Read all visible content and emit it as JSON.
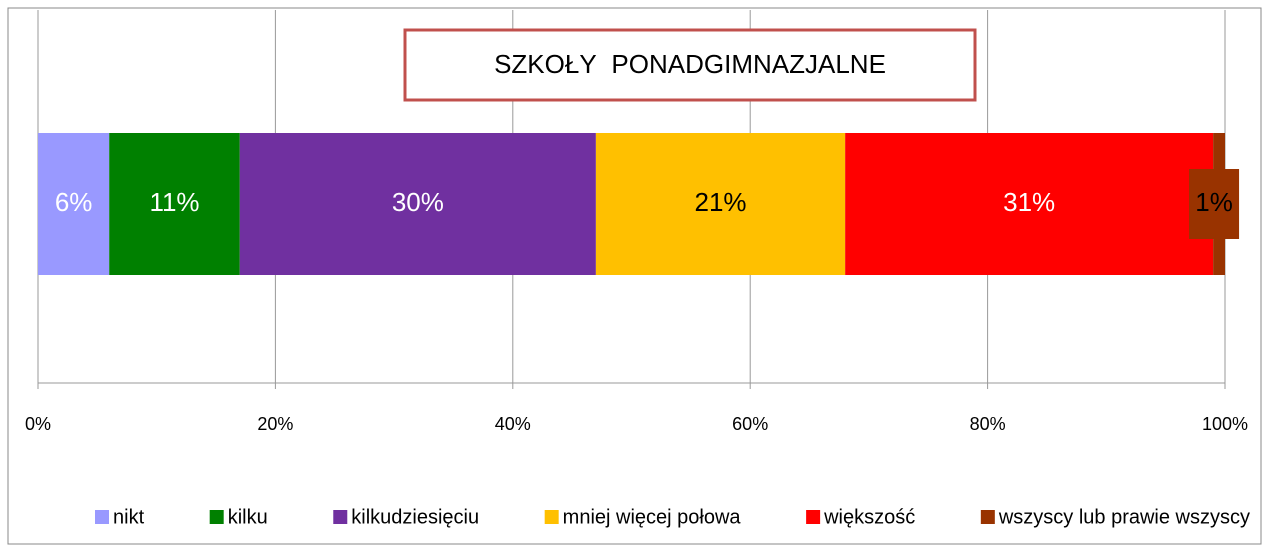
{
  "chart_data": {
    "type": "stacked_barh",
    "title": "SZKOŁY PONADGIMNAZJALNE",
    "categories": [
      null
    ],
    "series": [
      {
        "name": "nikt",
        "color": "#9999ff",
        "label_color": "#ffffff",
        "values": [
          6
        ],
        "value_labels": [
          "6%"
        ]
      },
      {
        "name": "kilku",
        "color": "#008000",
        "label_color": "#ffffff",
        "values": [
          11
        ],
        "value_labels": [
          "11%"
        ]
      },
      {
        "name": "kilkudziesięciu",
        "color": "#7030a0",
        "label_color": "#ffffff",
        "values": [
          30
        ],
        "value_labels": [
          "30%"
        ]
      },
      {
        "name": "mniej więcej połowa",
        "color": "#ffc000",
        "label_color": "#000000",
        "values": [
          21
        ],
        "value_labels": [
          "21%"
        ]
      },
      {
        "name": "większość",
        "color": "#ff0000",
        "label_color": "#ffffff",
        "values": [
          31
        ],
        "value_labels": [
          "31%"
        ]
      },
      {
        "name": "wszyscy lub prawie wszyscy",
        "color": "#993300",
        "label_color": "#000000",
        "values": [
          1
        ],
        "value_labels": [
          "1%"
        ]
      }
    ],
    "xlim": [
      0,
      100
    ],
    "xticks": [
      {
        "value": 0,
        "label": "0%"
      },
      {
        "value": 20,
        "label": "20%"
      },
      {
        "value": 40,
        "label": "40%"
      },
      {
        "value": 60,
        "label": "60%"
      },
      {
        "value": 80,
        "label": "80%"
      },
      {
        "value": 100,
        "label": "100%"
      }
    ],
    "grid": true,
    "legend": "bottom"
  }
}
